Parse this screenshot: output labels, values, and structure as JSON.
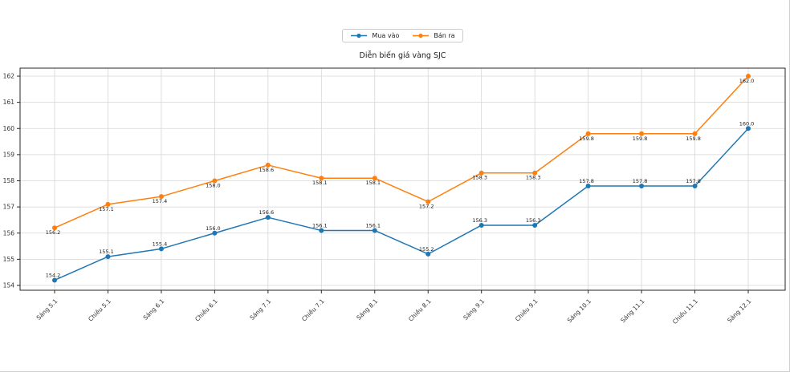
{
  "figure": {
    "border_color": "#cfcfcf",
    "background": "#ffffff"
  },
  "legend": {
    "position": "top-center",
    "items": [
      {
        "label": "Mua vào",
        "color": "#1f77b4"
      },
      {
        "label": "Bán ra",
        "color": "#ff7f0e"
      }
    ]
  },
  "chart_data": {
    "type": "line",
    "title": "Diễn biến giá vàng SJC",
    "categories": [
      "Sáng 5.1",
      "Chiều 5.1",
      "Sáng 6.1",
      "Chiều 6.1",
      "Sáng 7.1",
      "Chiều 7.1",
      "Sáng 8.1",
      "Chiều 8.1",
      "Sáng 9.1",
      "Chiều 9.1",
      "Sáng 10.1",
      "Sáng 11.1",
      "Chiều 11.1",
      "Sáng 12.1"
    ],
    "series": [
      {
        "name": "Mua vào",
        "color": "#1f77b4",
        "values": [
          154.2,
          155.1,
          155.4,
          156.0,
          156.6,
          156.1,
          156.1,
          155.2,
          156.3,
          156.3,
          157.8,
          157.8,
          157.8,
          160.0
        ]
      },
      {
        "name": "Bán ra",
        "color": "#ff7f0e",
        "values": [
          156.2,
          157.1,
          157.4,
          158.0,
          158.6,
          158.1,
          158.1,
          157.2,
          158.3,
          158.3,
          159.8,
          159.8,
          159.8,
          162.0
        ]
      }
    ],
    "xlabel": "",
    "ylabel": "",
    "ylim": [
      153.8,
      162.3
    ],
    "yticks": [
      154,
      155,
      156,
      157,
      158,
      159,
      160,
      161,
      162
    ],
    "grid": true,
    "point_labels": true,
    "legend_position": "top-center"
  },
  "colors": {
    "grid": "#d6d6d6",
    "spine": "#262626",
    "tick_text": "#333333",
    "annotation_text": "#1a1a1a"
  }
}
